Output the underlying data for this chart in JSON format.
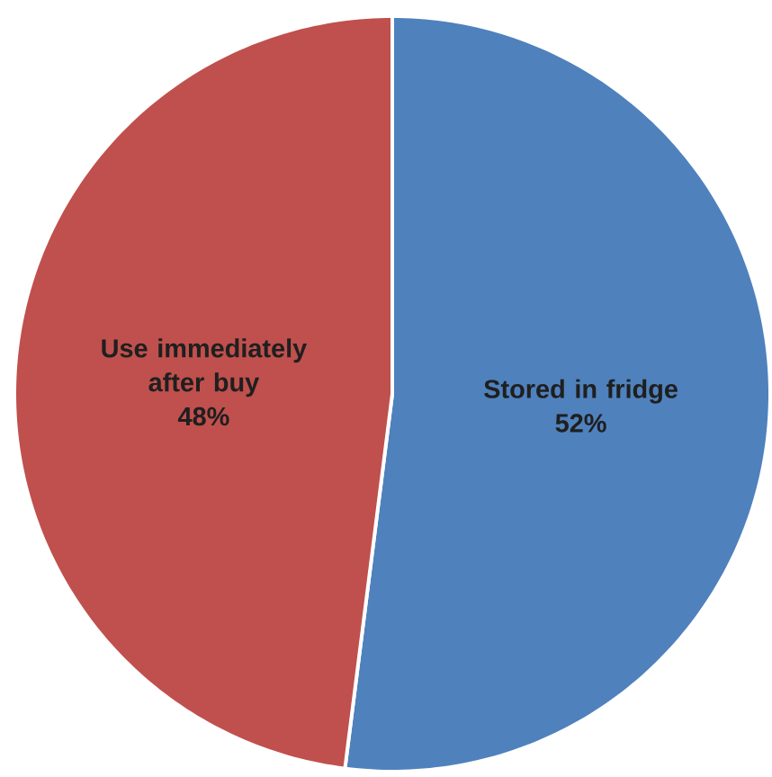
{
  "chart_data": {
    "type": "pie",
    "categories": [
      "Stored in fridge",
      "Use immediately after buy"
    ],
    "values": [
      52,
      48
    ],
    "colors": [
      "#4f81bd",
      "#c0504d"
    ],
    "value_labels": [
      "52%",
      "48%"
    ]
  }
}
